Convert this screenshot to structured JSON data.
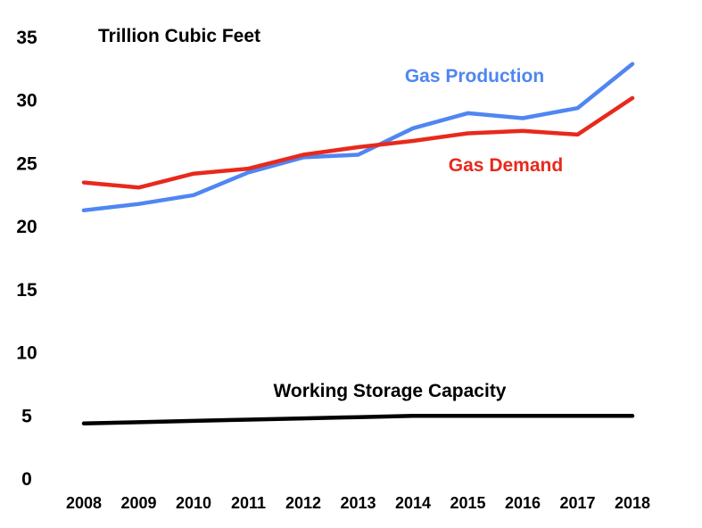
{
  "chart_data": {
    "type": "line",
    "title": "",
    "unit_label": "Trillion Cubic Feet",
    "xlabel": "",
    "ylabel": "",
    "categories": [
      "2008",
      "2009",
      "2010",
      "2011",
      "2012",
      "2013",
      "2014",
      "2015",
      "2016",
      "2017",
      "2018"
    ],
    "ylim": [
      0,
      35
    ],
    "y_ticks": [
      "0",
      "5",
      "10",
      "15",
      "20",
      "25",
      "30",
      "35"
    ],
    "grid": false,
    "legend": "inline labels",
    "series": [
      {
        "name": "Gas Production",
        "color": "#4f86f2",
        "values": [
          21.3,
          21.8,
          22.5,
          24.3,
          25.5,
          25.7,
          27.8,
          29.0,
          28.6,
          29.4,
          32.9
        ]
      },
      {
        "name": "Gas Demand",
        "color": "#e8291c",
        "values": [
          23.5,
          23.1,
          24.2,
          24.6,
          25.7,
          26.3,
          26.8,
          27.4,
          27.6,
          27.3,
          30.2
        ]
      },
      {
        "name": "Working Storage Capacity",
        "color": "#000000",
        "values": [
          4.4,
          4.5,
          4.6,
          4.7,
          4.8,
          4.9,
          5.0,
          5.0,
          5.0,
          5.0,
          5.0
        ]
      }
    ]
  }
}
